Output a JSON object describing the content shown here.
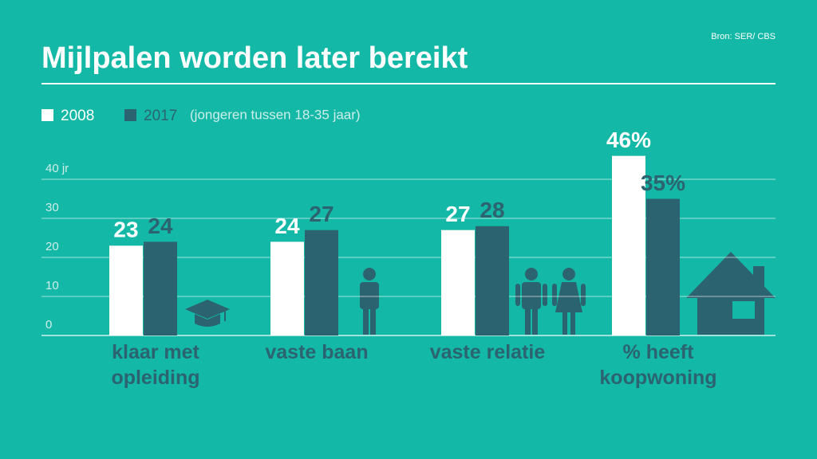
{
  "chart_data": {
    "type": "bar",
    "title": "Mijlpalen worden later bereikt",
    "subtitle": "(jongeren tussen 18-35 jaar)",
    "source": "Bron: SER/ CBS",
    "categories": [
      "klaar met opleiding",
      "vaste baan",
      "vaste relatie",
      "% heeft koopwoning"
    ],
    "series": [
      {
        "name": "2008",
        "color": "#ffffff",
        "values": [
          23,
          24,
          27,
          46
        ],
        "value_labels": [
          "23",
          "24",
          "27",
          "46%"
        ]
      },
      {
        "name": "2017",
        "color": "#2b6470",
        "values": [
          24,
          27,
          28,
          35
        ],
        "value_labels": [
          "24",
          "27",
          "28",
          "35%"
        ]
      }
    ],
    "ylim": [
      0,
      40
    ],
    "yticks": [
      0,
      10,
      20,
      30,
      {
        "value": 40,
        "label": "40 jr"
      }
    ],
    "grid": true
  }
}
